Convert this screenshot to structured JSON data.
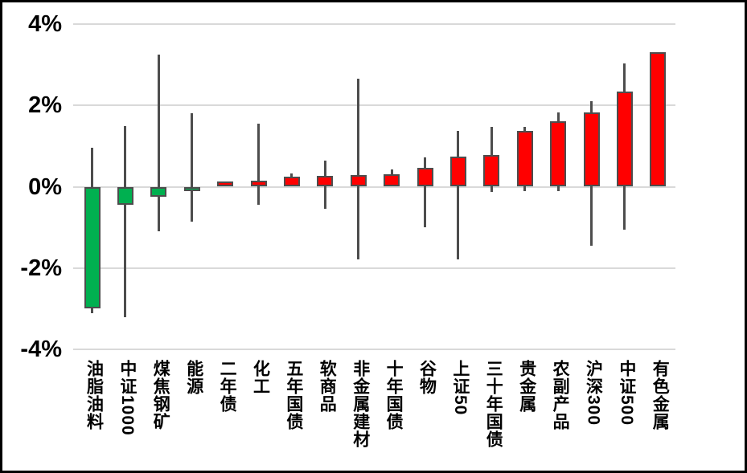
{
  "chart_data": {
    "type": "candlestick",
    "description": "weekly percent-change candlestick chart of Chinese futures sectors and stock indices",
    "unit": "%",
    "grid": true,
    "y_axis": {
      "ticks": [
        {
          "label": "4%",
          "value": 4
        },
        {
          "label": "2%",
          "value": 2
        },
        {
          "label": "0%",
          "value": 0
        },
        {
          "label": "-2%",
          "value": -2
        },
        {
          "label": "-4%",
          "value": -4
        }
      ],
      "ylim": [
        -4,
        4
      ]
    },
    "colors": {
      "up": "#FF0000",
      "down": "#00B050",
      "outline": "#4D4D4D",
      "gridline": "#D9D9D9",
      "text": "#000000",
      "frame": "#000000",
      "background": "#FFFFFF"
    },
    "categories": [
      "油脂油料",
      "中证1000",
      "煤焦钢矿",
      "能源",
      "二年债",
      "化工",
      "五年国债",
      "软商品",
      "非金属建材",
      "十年国债",
      "谷物",
      "上证50",
      "三十年国债",
      "贵金属",
      "农副产品",
      "沪深300",
      "中证500",
      "有色金属"
    ],
    "candles": [
      {
        "label": "油脂油料",
        "open": 0,
        "close": -3.0,
        "high": 0.95,
        "low": -3.1,
        "direction": "down"
      },
      {
        "label": "中证1000",
        "open": 0,
        "close": -0.45,
        "high": 1.5,
        "low": -3.2,
        "direction": "down"
      },
      {
        "label": "煤焦钢矿",
        "open": 0,
        "close": -0.25,
        "high": 3.25,
        "low": -1.1,
        "direction": "down"
      },
      {
        "label": "能源",
        "open": 0,
        "close": -0.1,
        "high": 1.8,
        "low": -0.85,
        "direction": "down"
      },
      {
        "label": "二年债",
        "open": 0,
        "close": 0.12,
        "high": 0.12,
        "low": 0,
        "direction": "up"
      },
      {
        "label": "化工",
        "open": 0,
        "close": 0.15,
        "high": 1.55,
        "low": -0.45,
        "direction": "up"
      },
      {
        "label": "五年国债",
        "open": 0,
        "close": 0.25,
        "high": 0.32,
        "low": 0,
        "direction": "up"
      },
      {
        "label": "软商品",
        "open": 0,
        "close": 0.27,
        "high": 0.65,
        "low": -0.55,
        "direction": "up"
      },
      {
        "label": "非金属建材",
        "open": 0,
        "close": 0.28,
        "high": 2.65,
        "low": -1.78,
        "direction": "up"
      },
      {
        "label": "十年国债",
        "open": 0,
        "close": 0.31,
        "high": 0.43,
        "low": 0,
        "direction": "up"
      },
      {
        "label": "谷物",
        "open": 0,
        "close": 0.46,
        "high": 0.73,
        "low": -1.0,
        "direction": "up"
      },
      {
        "label": "上证50",
        "open": 0,
        "close": 0.74,
        "high": 1.38,
        "low": -1.78,
        "direction": "up"
      },
      {
        "label": "三十年国债",
        "open": 0,
        "close": 0.77,
        "high": 1.47,
        "low": -0.12,
        "direction": "up"
      },
      {
        "label": "贵金属",
        "open": 0,
        "close": 1.37,
        "high": 1.48,
        "low": -0.1,
        "direction": "up"
      },
      {
        "label": "农副产品",
        "open": 0,
        "close": 1.6,
        "high": 1.83,
        "low": -0.1,
        "direction": "up"
      },
      {
        "label": "沪深300",
        "open": 0,
        "close": 1.82,
        "high": 2.1,
        "low": -1.45,
        "direction": "up"
      },
      {
        "label": "中证500",
        "open": 0,
        "close": 2.33,
        "high": 3.03,
        "low": -1.05,
        "direction": "up"
      },
      {
        "label": "有色金属",
        "open": 0,
        "close": 3.3,
        "high": 3.3,
        "low": 0,
        "direction": "up"
      }
    ]
  }
}
